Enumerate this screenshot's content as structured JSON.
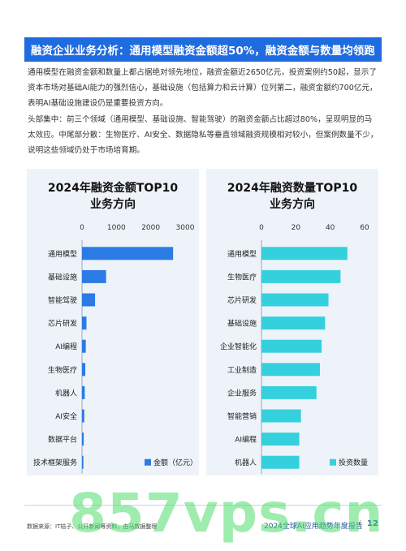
{
  "header": {
    "title": "融资企业业务分析：通用模型融资金额超50%，融资金额与数量均领跑"
  },
  "body": {
    "paragraph1": "通用模型在融资金额和数量上都占据绝对领先地位，融资金额近2650亿元，投资案例约50起，显示了资本市场对基础AI能力的强烈信心，基础设施（包括算力和云计算）位列第二，融资金额约700亿元，表明AI基础设施建设仍是重要投资方向。",
    "paragraph2": "头部集中：前三个领域（通用模型、基础设施、智能驾驶）的融资金额占比超过80%，呈现明显的马太效应。中尾部分散：生物医疗、AI安全、数据隐私等垂直领域融资规模相对较小，但案例数量不少，说明这些领域仍处于市场培育期。"
  },
  "chart_data": [
    {
      "type": "bar",
      "orientation": "horizontal",
      "title": "2024年融资金额TOP10业务方向",
      "title_lines": [
        "2024年融资金额TOP10",
        "业务方向"
      ],
      "categories": [
        "通用模型",
        "基础设施",
        "智能驾驶",
        "芯片研发",
        "AI编程",
        "生物医疗",
        "机器人",
        "AI安全",
        "数据平台",
        "技术框架服务"
      ],
      "series": [
        {
          "name": "金额（亿元）",
          "values": [
            2650,
            700,
            380,
            130,
            110,
            95,
            80,
            65,
            50,
            40
          ]
        }
      ],
      "xlim": [
        0,
        3000
      ],
      "xticks": [
        "0",
        "1000",
        "2000",
        "3000"
      ],
      "color": "#2b7be4",
      "legend": "bottom-right",
      "grid": false
    },
    {
      "type": "bar",
      "orientation": "horizontal",
      "title": "2024年融资数量TOP10业务方向",
      "title_lines": [
        "2024年融资数量TOP10",
        "业务方向"
      ],
      "categories": [
        "通用模型",
        "生物医疗",
        "芯片研发",
        "基础设施",
        "企业智能化",
        "工业制造",
        "企业服务",
        "智能营销",
        "AI编程",
        "机器人"
      ],
      "series": [
        {
          "name": "投资数量",
          "values": [
            50,
            46,
            39,
            37,
            35,
            34,
            32,
            23,
            22,
            22
          ]
        }
      ],
      "xlim": [
        0,
        60
      ],
      "xticks": [
        "0",
        "20",
        "40",
        "60"
      ],
      "color": "#35d0de",
      "legend": "bottom-right",
      "grid": false
    }
  ],
  "footer": {
    "source": "数据来源：IT桔子、公开新闻等资料，由马数据整理",
    "report": "2024全球AI应用趋势年度报告",
    "separator": "|",
    "page": "12"
  },
  "watermark": "857vps.cn"
}
